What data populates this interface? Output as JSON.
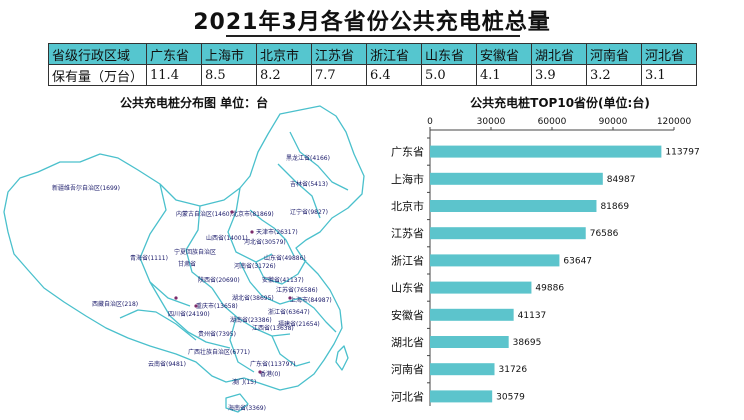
{
  "title": "2021年3月各省份公共充电桩总量",
  "summary_table": {
    "header_label": "省级行政区域",
    "value_label": "保有量（万台）",
    "provinces": [
      "广东省",
      "上海市",
      "北京市",
      "江苏省",
      "浙江省",
      "山东省",
      "安徽省",
      "湖北省",
      "河南省",
      "河北省"
    ],
    "values": [
      "11.4",
      "8.5",
      "8.2",
      "7.7",
      "6.4",
      "5.0",
      "4.1",
      "3.9",
      "3.2",
      "3.1"
    ]
  },
  "map": {
    "title": "公共充电桩分布图  单位：台",
    "labels": [
      "黑龙江省(4166)",
      "吉林省(5413)",
      "辽宁省(9827)",
      "内蒙古自治区(1460)",
      "北京市(81869)",
      "天津市(26317)",
      "河北省(30579)",
      "山西省(14001)",
      "山东省(49886)",
      "新疆维吾尔自治区(1699)",
      "宁夏回族自治区",
      "甘肃省",
      "青海省(1111)",
      "陕西省(20690)",
      "河南省(31726)",
      "江苏省(76586)",
      "上海市(84987)",
      "安徽省(41137)",
      "湖北省(38695)",
      "浙江省(63647)",
      "西藏自治区(218)",
      "四川省(24190)",
      "重庆市(13658)",
      "贵州省(7395)",
      "湖南省(23386)",
      "江西省(13638)",
      "福建省(21654)",
      "广西壮族自治区(6771)",
      "云南省(9481)",
      "广东省(113797)",
      "澳门(15)",
      "香港(0)",
      "海南省(3369)"
    ]
  },
  "chart_data": {
    "type": "bar",
    "orientation": "horizontal",
    "title": "公共充电桩TOP10省份(单位:台)",
    "categories": [
      "广东省",
      "上海市",
      "北京市",
      "江苏省",
      "浙江省",
      "山东省",
      "安徽省",
      "湖北省",
      "河南省",
      "河北省"
    ],
    "values": [
      113797,
      84987,
      81869,
      76586,
      63647,
      49886,
      41137,
      38695,
      31726,
      30579
    ],
    "xlim": [
      0,
      120000
    ],
    "xticks": [
      "0",
      "30000",
      "60000",
      "90000",
      "120000"
    ],
    "axis_position": "top",
    "data_labels": true,
    "grid": false,
    "bar_color": "#5cc4cc"
  }
}
